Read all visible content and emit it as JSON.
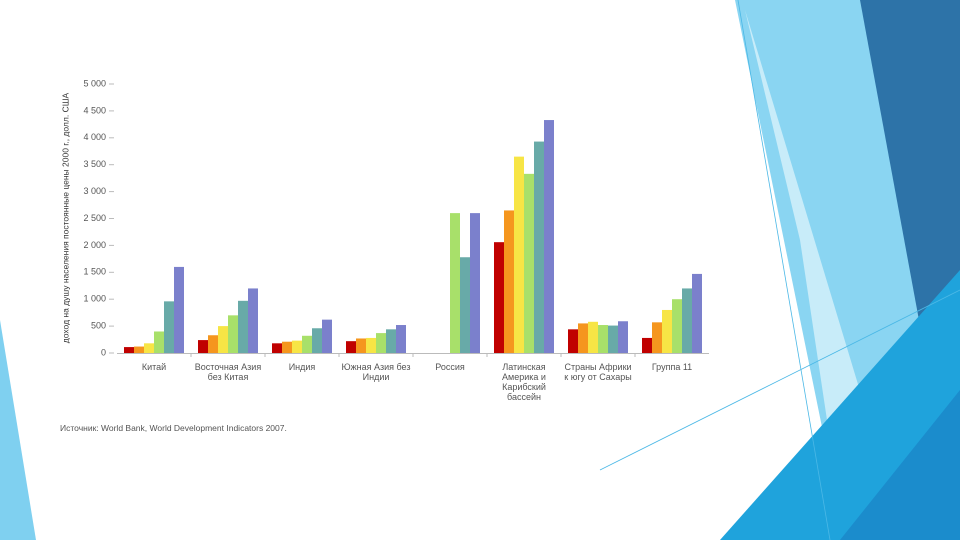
{
  "chart_data": {
    "type": "bar",
    "y_label": "доход на душу населения постоянные цены 2000 г., долл. США",
    "source": "Источник: World Bank, World Development Indicators 2007.",
    "categories": [
      "Китай",
      "Восточная Азия без Китая",
      "Индия",
      "Южная Азия без Индии",
      "Россия",
      "Латинская Америка и Карибский бассейн",
      "Страны Африки к югу от Сахары",
      "Группа 11"
    ],
    "series": [
      {
        "color": "#c00000",
        "values": [
          110,
          240,
          180,
          220,
          null,
          2060,
          440,
          280
        ]
      },
      {
        "color": "#f5961e",
        "values": [
          120,
          330,
          210,
          270,
          null,
          2650,
          550,
          570
        ]
      },
      {
        "color": "#f7e545",
        "values": [
          180,
          500,
          230,
          280,
          null,
          3650,
          580,
          800
        ]
      },
      {
        "color": "#a8e06a",
        "values": [
          400,
          700,
          320,
          370,
          2600,
          3330,
          520,
          1000
        ]
      },
      {
        "color": "#68aaa8",
        "values": [
          960,
          970,
          460,
          440,
          1780,
          3930,
          510,
          1200
        ]
      },
      {
        "color": "#7b80cc",
        "values": [
          1600,
          1200,
          620,
          520,
          2600,
          4330,
          590,
          1470
        ]
      }
    ],
    "ylim": [
      0,
      5000
    ],
    "yticks": [
      0,
      500,
      {
        "value": 1000,
        "label": "1 000"
      },
      {
        "value": 1500,
        "label": "1 500"
      },
      {
        "value": 2000,
        "label": "2 000"
      },
      {
        "value": 2500,
        "label": "2 500"
      },
      {
        "value": 3000,
        "label": "3 000"
      },
      {
        "value": 3500,
        "label": "3 500"
      },
      {
        "value": 4000,
        "label": "4 000"
      },
      {
        "value": 4500,
        "label": "4 500"
      },
      {
        "value": 5000,
        "label": "5 000"
      }
    ],
    "grid": false
  }
}
